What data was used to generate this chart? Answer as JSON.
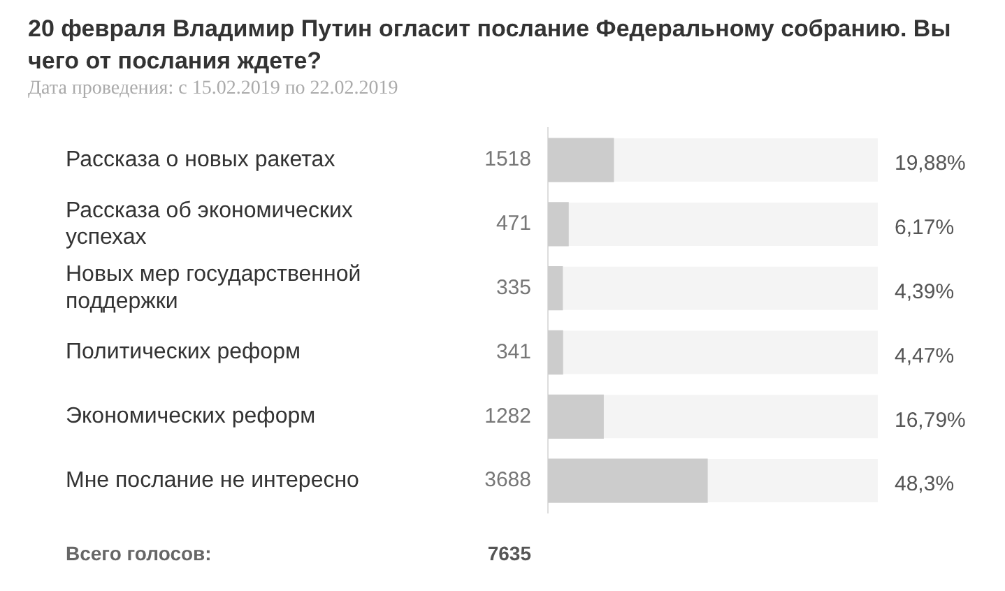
{
  "chart_data": {
    "type": "bar",
    "orientation": "horizontal",
    "title": "20 февраля Владимир Путин огласит послание Федеральному собранию. Вы чего от послания ждете?",
    "subtitle": "Дата проведения: с 15.02.2019 по 22.02.2019",
    "categories": [
      "Рассказа о новых ракетах",
      "Рассказа об экономических успехах",
      "Новых мер государственной поддержки",
      "Политических реформ",
      "Экономических реформ",
      "Мне послание не интересно"
    ],
    "values": [
      1518,
      471,
      335,
      341,
      1282,
      3688
    ],
    "data_labels": true,
    "color": "#cccccc",
    "tick_labels": "y",
    "legend": false,
    "annotations": [
      "19,88%",
      "6,17%",
      "4,39%",
      "4,47%",
      "16,79%",
      "48,3%",
      "Всего голосов:",
      "7635"
    ]
  }
}
